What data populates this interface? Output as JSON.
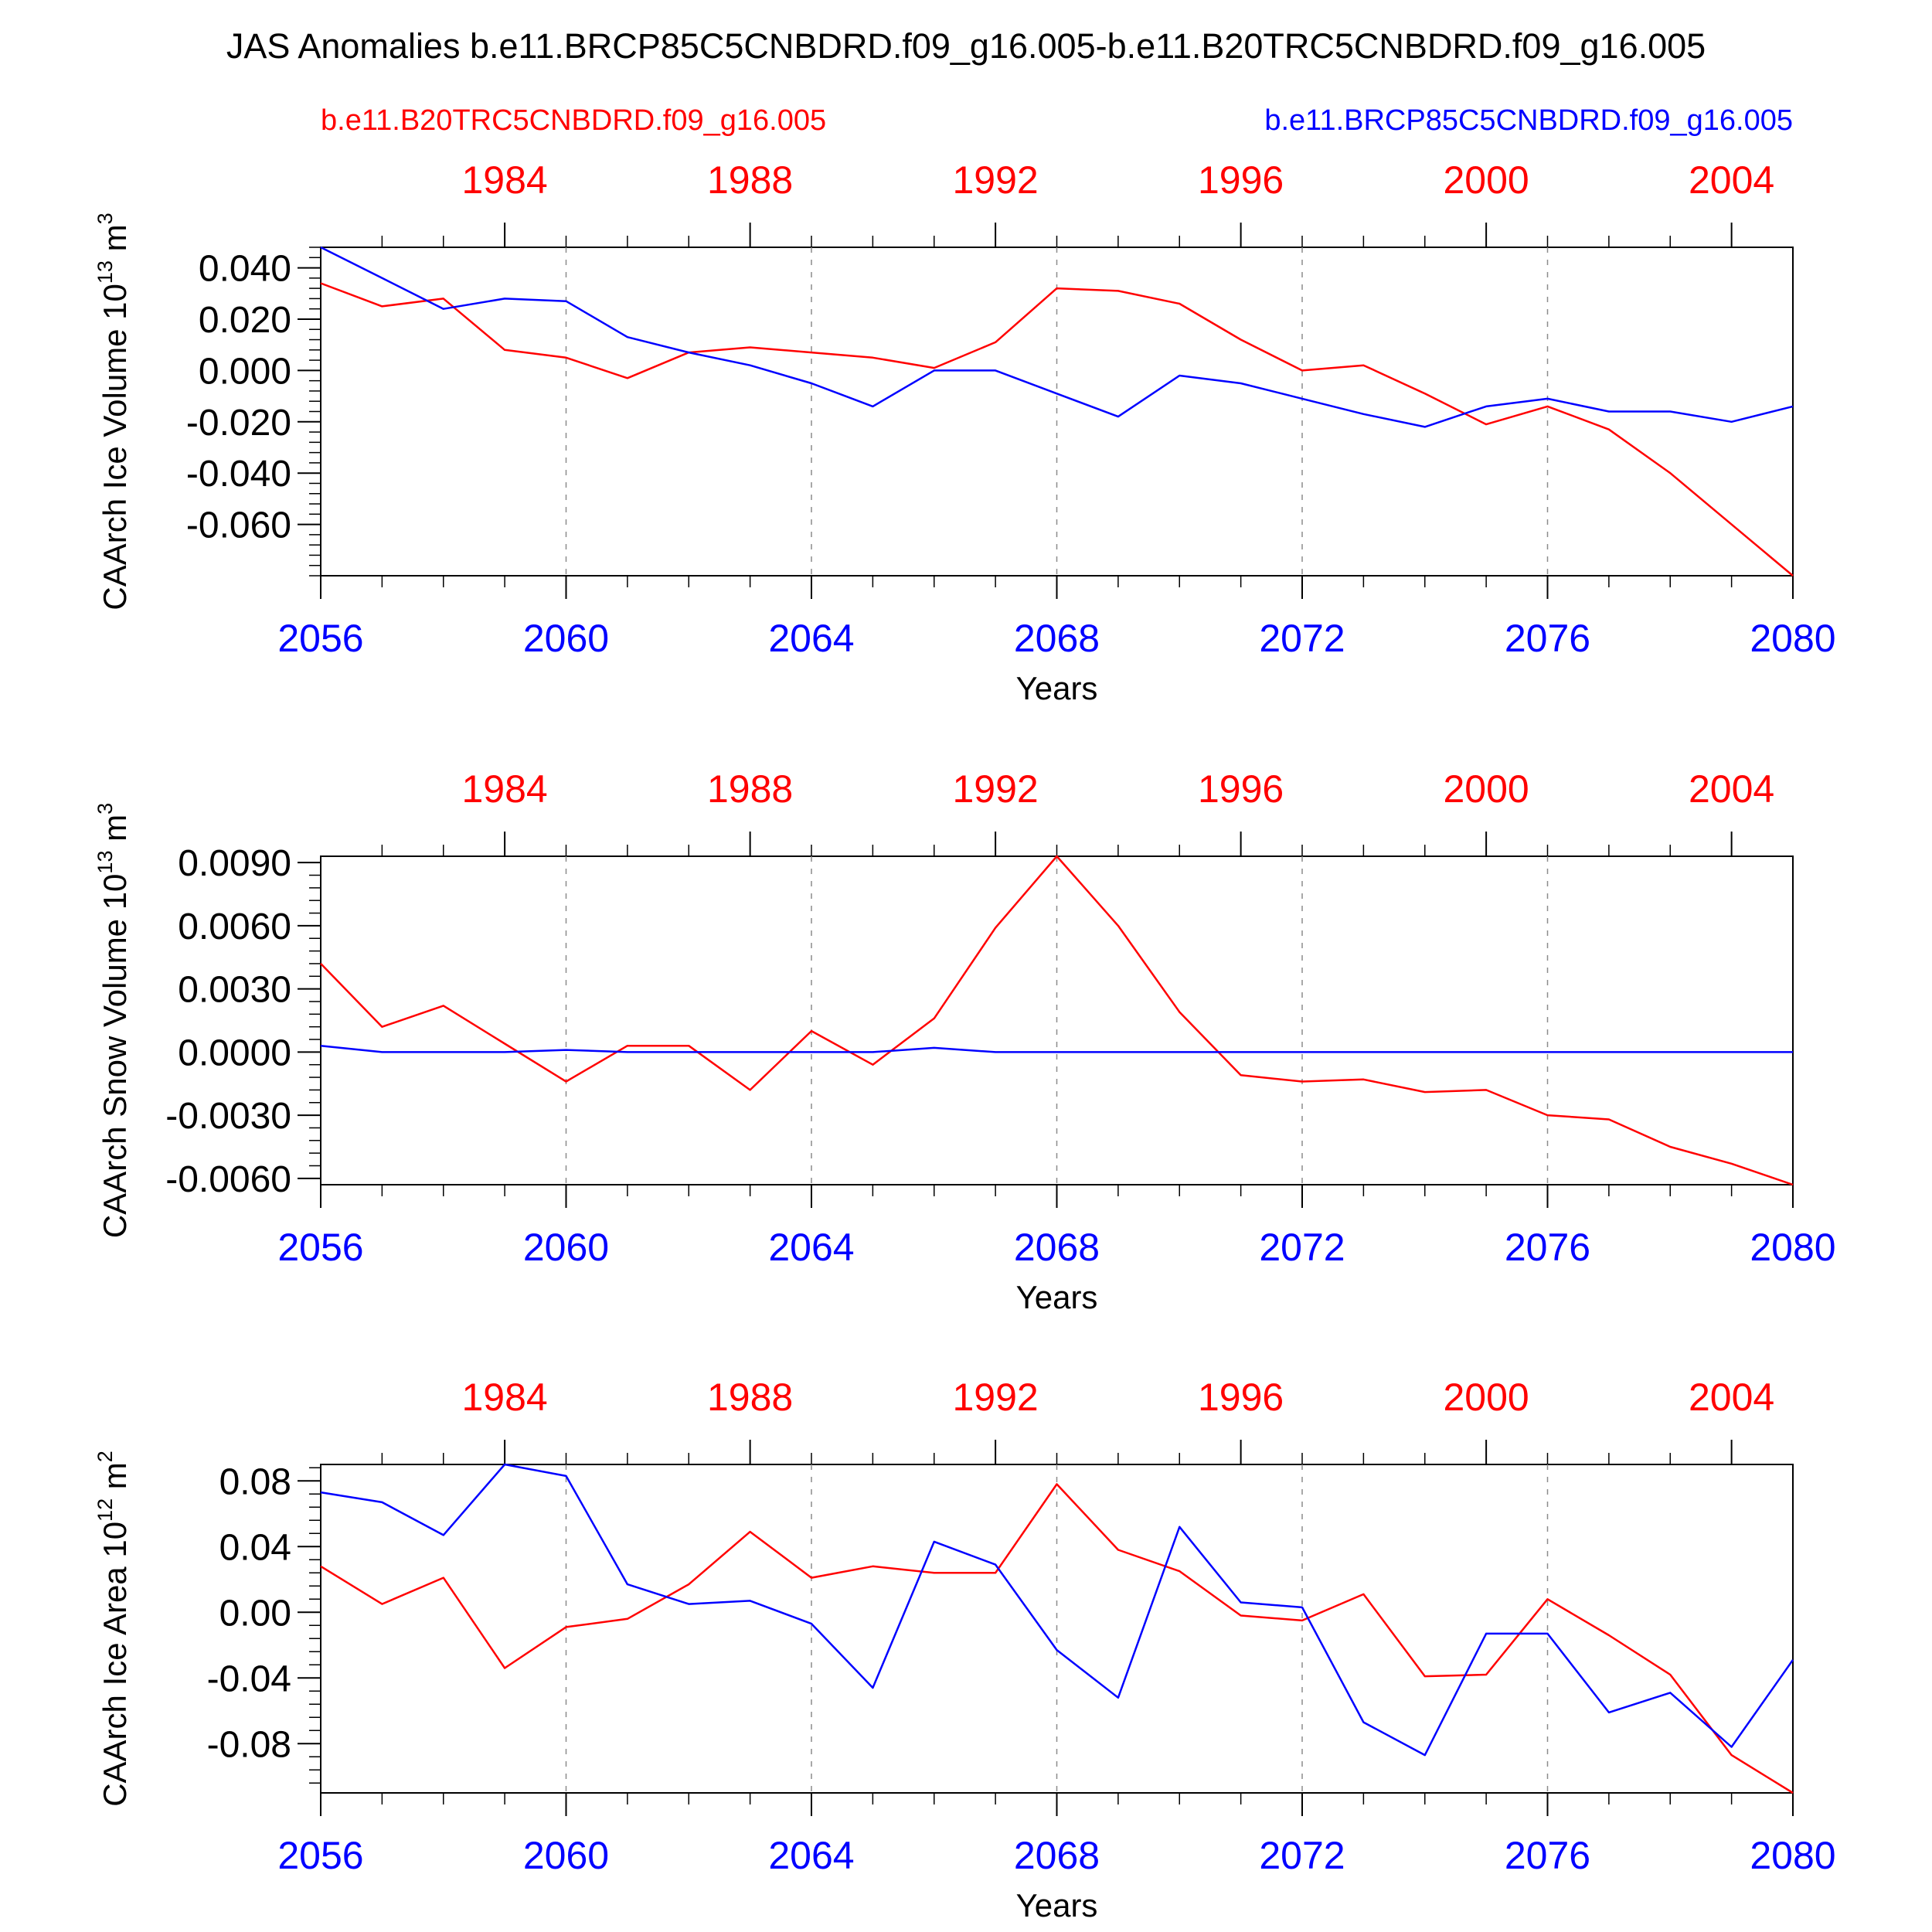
{
  "title": "JAS Anomalies b.e11.BRCP85C5CNBDRD.f09_g16.005-b.e11.B20TRC5CNBDRD.f09_g16.005",
  "legend": {
    "left": {
      "text": "b.e11.B20TRC5CNBDRD.f09_g16.005",
      "color": "#ff0000"
    },
    "right": {
      "text": "b.e11.BRCP85C5CNBDRD.f09_g16.005",
      "color": "#0000ff"
    }
  },
  "colors": {
    "red": "#ff0000",
    "blue": "#0000ff",
    "axis": "#000000",
    "grid": "#8c8c8c"
  },
  "chart_data": [
    {
      "type": "line",
      "ylabel": "CAArch Ice Volume 10",
      "ylabel_exp": "13",
      "ylabel_unit": " m",
      "ylabel_unit_exp": "3",
      "xlabel": "Years",
      "ylim": [
        -0.08,
        0.048
      ],
      "yticks": [
        0.04,
        0.02,
        0.0,
        -0.02,
        -0.04,
        -0.06
      ],
      "ytick_labels": [
        "0.040",
        "0.020",
        "0.000",
        "-0.020",
        "-0.040",
        "-0.060"
      ],
      "x": [
        2056,
        2057,
        2058,
        2059,
        2060,
        2061,
        2062,
        2063,
        2064,
        2065,
        2066,
        2067,
        2068,
        2069,
        2070,
        2071,
        2072,
        2073,
        2074,
        2075,
        2076,
        2077,
        2078,
        2079,
        2080
      ],
      "xticks_bottom": [
        2056,
        2060,
        2064,
        2068,
        2072,
        2076,
        2080
      ],
      "top_axis_labels": [
        "1984",
        "1988",
        "1992",
        "1996",
        "2000",
        "2004"
      ],
      "series": [
        {
          "color": "#ff0000",
          "values": [
            0.034,
            0.025,
            0.028,
            0.008,
            0.005,
            -0.003,
            0.007,
            0.009,
            0.007,
            0.005,
            0.001,
            0.011,
            0.032,
            0.031,
            0.026,
            0.012,
            0.0,
            0.002,
            -0.009,
            -0.021,
            -0.014,
            -0.023,
            -0.04,
            -0.06,
            -0.08
          ]
        },
        {
          "color": "#0000ff",
          "values": [
            0.048,
            0.036,
            0.024,
            0.028,
            0.027,
            0.013,
            0.007,
            0.002,
            -0.005,
            -0.014,
            0.0,
            0.0,
            -0.009,
            -0.018,
            -0.002,
            -0.005,
            -0.011,
            -0.017,
            -0.022,
            -0.014,
            -0.011,
            -0.016,
            -0.016,
            -0.02,
            -0.014
          ]
        }
      ]
    },
    {
      "type": "line",
      "ylabel": "CAArch Snow Volume 10",
      "ylabel_exp": "13",
      "ylabel_unit": " m",
      "ylabel_unit_exp": "3",
      "xlabel": "Years",
      "ylim": [
        -0.0063,
        0.0093
      ],
      "yticks": [
        0.009,
        0.006,
        0.003,
        0.0,
        -0.003,
        -0.006
      ],
      "ytick_labels": [
        "0.0090",
        "0.0060",
        "0.0030",
        "0.0000",
        "-0.0030",
        "-0.0060"
      ],
      "x": [
        2056,
        2057,
        2058,
        2059,
        2060,
        2061,
        2062,
        2063,
        2064,
        2065,
        2066,
        2067,
        2068,
        2069,
        2070,
        2071,
        2072,
        2073,
        2074,
        2075,
        2076,
        2077,
        2078,
        2079,
        2080
      ],
      "xticks_bottom": [
        2056,
        2060,
        2064,
        2068,
        2072,
        2076,
        2080
      ],
      "top_axis_labels": [
        "1984",
        "1988",
        "1992",
        "1996",
        "2000",
        "2004"
      ],
      "series": [
        {
          "color": "#ff0000",
          "values": [
            0.0042,
            0.0012,
            0.0022,
            0.0004,
            -0.0014,
            0.0003,
            0.0003,
            -0.0018,
            0.001,
            -0.0006,
            0.0016,
            0.0059,
            0.0093,
            0.006,
            0.0019,
            -0.0011,
            -0.0014,
            -0.0013,
            -0.0019,
            -0.0018,
            -0.003,
            -0.0032,
            -0.0045,
            -0.0053,
            -0.0063
          ]
        },
        {
          "color": "#0000ff",
          "values": [
            0.0003,
            0.0,
            0.0,
            0.0,
            0.0001,
            0.0,
            0.0,
            0.0,
            0.0,
            0.0,
            0.0002,
            0.0,
            0.0,
            0.0,
            0.0,
            0.0,
            0.0,
            0.0,
            0.0,
            0.0,
            0.0,
            0.0,
            0.0,
            0.0,
            0.0
          ]
        }
      ]
    },
    {
      "type": "line",
      "ylabel": "CAArch Ice Area 10",
      "ylabel_exp": "12",
      "ylabel_unit": " m",
      "ylabel_unit_exp": "2",
      "xlabel": "Years",
      "ylim": [
        -0.11,
        0.09
      ],
      "yticks": [
        0.08,
        0.04,
        0.0,
        -0.04,
        -0.08
      ],
      "ytick_labels": [
        "0.08",
        "0.04",
        "0.00",
        "-0.04",
        "-0.08"
      ],
      "x": [
        2056,
        2057,
        2058,
        2059,
        2060,
        2061,
        2062,
        2063,
        2064,
        2065,
        2066,
        2067,
        2068,
        2069,
        2070,
        2071,
        2072,
        2073,
        2074,
        2075,
        2076,
        2077,
        2078,
        2079,
        2080
      ],
      "xticks_bottom": [
        2056,
        2060,
        2064,
        2068,
        2072,
        2076,
        2080
      ],
      "top_axis_labels": [
        "1984",
        "1988",
        "1992",
        "1996",
        "2000",
        "2004"
      ],
      "series": [
        {
          "color": "#ff0000",
          "values": [
            0.028,
            0.005,
            0.021,
            -0.034,
            -0.009,
            -0.004,
            0.017,
            0.049,
            0.021,
            0.028,
            0.024,
            0.024,
            0.078,
            0.038,
            0.025,
            -0.002,
            -0.005,
            0.011,
            -0.039,
            -0.038,
            0.008,
            -0.014,
            -0.038,
            -0.087,
            -0.11
          ]
        },
        {
          "color": "#0000ff",
          "values": [
            0.073,
            0.067,
            0.047,
            0.09,
            0.083,
            0.017,
            0.005,
            0.007,
            -0.007,
            -0.046,
            0.043,
            0.029,
            -0.023,
            -0.052,
            0.052,
            0.006,
            0.003,
            -0.067,
            -0.087,
            -0.013,
            -0.013,
            -0.061,
            -0.049,
            -0.082,
            -0.029
          ]
        }
      ]
    }
  ]
}
